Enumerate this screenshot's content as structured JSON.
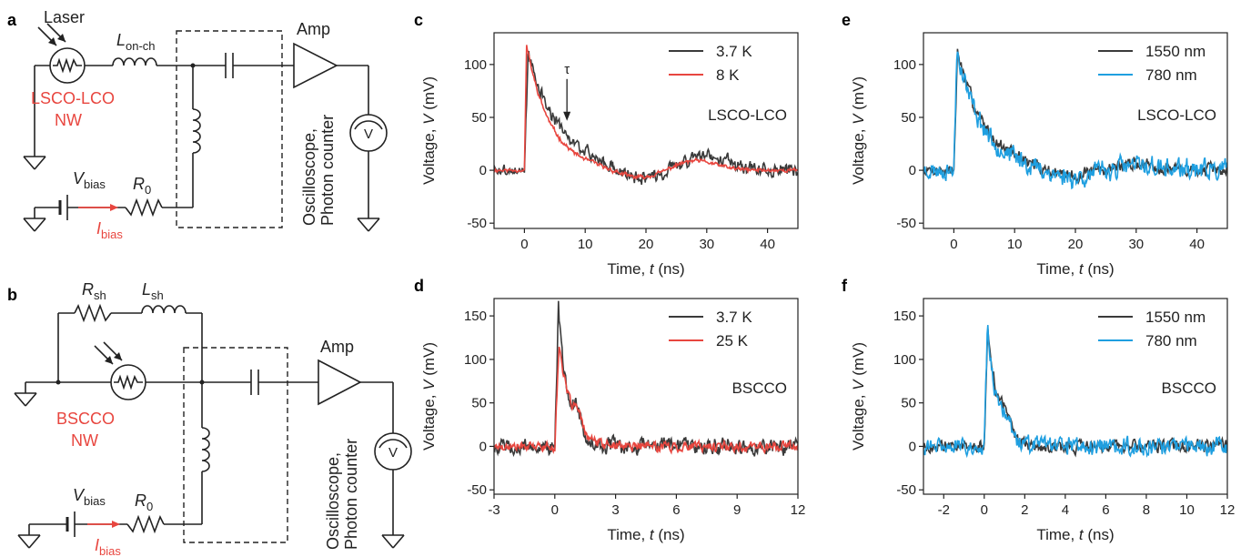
{
  "panels": {
    "a": {
      "letter": "a",
      "laser": "Laser",
      "inductor_main": "L",
      "inductor_sub": "on-ch",
      "device_line1": "LSCO-LCO",
      "device_line2": "NW",
      "amp": "Amp",
      "vbias_main": "V",
      "vbias_sub": "bias",
      "r0_main": "R",
      "r0_sub": "0",
      "ibias_main": "I",
      "ibias_sub": "bias",
      "readout_line1": "Oscilloscope,",
      "readout_line2": "Photon counter",
      "meter": "V"
    },
    "b": {
      "letter": "b",
      "rsh_main": "R",
      "rsh_sub": "sh",
      "lsh_main": "L",
      "lsh_sub": "sh",
      "device_line1": "BSCCO",
      "device_line2": "NW",
      "amp": "Amp",
      "vbias_main": "V",
      "vbias_sub": "bias",
      "r0_main": "R",
      "r0_sub": "0",
      "ibias_main": "I",
      "ibias_sub": "bias",
      "readout_line1": "Oscilloscope,",
      "readout_line2": "Photon counter",
      "meter": "V"
    }
  },
  "colors": {
    "dark": "#3a3a3a",
    "red": "#e8463f",
    "blue": "#1f9fe0",
    "ink": "#222222"
  },
  "chart_data": [
    {
      "id": "c",
      "letter": "c",
      "type": "line",
      "xlabel_main": "Time, ",
      "xlabel_var": "t",
      "xlabel_unit": " (ns)",
      "ylabel_main": "Voltage, ",
      "ylabel_var": "V",
      "ylabel_unit": " (mV)",
      "xlim": [
        -5,
        45
      ],
      "ylim": [
        -55,
        130
      ],
      "xticks": [
        0,
        10,
        20,
        30,
        40
      ],
      "yticks": [
        -50,
        0,
        50,
        100
      ],
      "sample": "LSCO-LCO",
      "annotation": "τ",
      "annotation_x": 7,
      "annotation_y": 45,
      "legend": "top-right",
      "series": [
        {
          "name": "3.7 K",
          "color": "#3a3a3a",
          "kind": "slow",
          "peak": 110,
          "tau": 5.2,
          "rise": 0.6,
          "noise": 9,
          "extra_noise": 3,
          "undershoot": -10,
          "bump": 15,
          "bumpx": 30,
          "seed": 3
        },
        {
          "name": "8 K",
          "color": "#e8463f",
          "kind": "slow",
          "peak": 118,
          "tau": 4.0,
          "rise": 0.35,
          "noise": 2.5,
          "extra_noise": 1.5,
          "undershoot": -8,
          "bump": 9,
          "bumpx": 28,
          "seed": 11
        }
      ]
    },
    {
      "id": "d",
      "letter": "d",
      "type": "line",
      "xlabel_main": "Time, ",
      "xlabel_var": "t",
      "xlabel_unit": " (ns)",
      "ylabel_main": "Voltage, ",
      "ylabel_var": "V",
      "ylabel_unit": " (mV)",
      "xlim": [
        -3,
        12
      ],
      "ylim": [
        -55,
        170
      ],
      "xticks": [
        -3,
        0,
        3,
        6,
        9,
        12
      ],
      "yticks": [
        -50,
        0,
        50,
        100,
        150
      ],
      "sample": "BSCCO",
      "legend": "top-right",
      "series": [
        {
          "name": "3.7 K",
          "color": "#3a3a3a",
          "kind": "fast",
          "peak": 160,
          "tau": 0.45,
          "rise": 0.18,
          "noise": 15,
          "seed": 5
        },
        {
          "name": "25 K",
          "color": "#e8463f",
          "kind": "fast",
          "peak": 122,
          "tau": 0.55,
          "rise": 0.22,
          "noise": 9,
          "seed": 17
        }
      ]
    },
    {
      "id": "e",
      "letter": "e",
      "type": "line",
      "xlabel_main": "Time, ",
      "xlabel_var": "t",
      "xlabel_unit": " (ns)",
      "ylabel_main": "Voltage, ",
      "ylabel_var": "V",
      "ylabel_unit": " (mV)",
      "xlim": [
        -5,
        45
      ],
      "ylim": [
        -55,
        130
      ],
      "xticks": [
        0,
        10,
        20,
        30,
        40
      ],
      "yticks": [
        -50,
        0,
        50,
        100
      ],
      "sample": "LSCO-LCO",
      "legend": "top-right",
      "series": [
        {
          "name": "1550 nm",
          "color": "#3a3a3a",
          "kind": "slow",
          "peak": 112,
          "tau": 4.6,
          "rise": 0.6,
          "noise": 9,
          "extra_noise": 3,
          "undershoot": -7,
          "bump": 6,
          "bumpx": 30,
          "seed": 7
        },
        {
          "name": "780 nm",
          "color": "#1f9fe0",
          "kind": "slow",
          "peak": 116,
          "tau": 4.2,
          "rise": 0.5,
          "noise": 14,
          "extra_noise": 4,
          "undershoot": -8,
          "bump": 4,
          "bumpx": 30,
          "seed": 23
        }
      ]
    },
    {
      "id": "f",
      "letter": "f",
      "type": "line",
      "xlabel_main": "Time, ",
      "xlabel_var": "t",
      "xlabel_unit": " (ns)",
      "ylabel_main": "Voltage, ",
      "ylabel_var": "V",
      "ylabel_unit": " (mV)",
      "xlim": [
        -3,
        12
      ],
      "ylim": [
        -55,
        170
      ],
      "xticks": [
        -2,
        0,
        2,
        4,
        6,
        8,
        10,
        12
      ],
      "yticks": [
        -50,
        0,
        50,
        100,
        150
      ],
      "sample": "BSCCO",
      "legend": "top-right",
      "series": [
        {
          "name": "1550 nm",
          "color": "#3a3a3a",
          "kind": "fast",
          "peak": 142,
          "tau": 0.5,
          "rise": 0.18,
          "noise": 12,
          "seed": 9
        },
        {
          "name": "780 nm",
          "color": "#1f9fe0",
          "kind": "fast",
          "peak": 138,
          "tau": 0.45,
          "rise": 0.16,
          "noise": 16,
          "seed": 31
        }
      ]
    }
  ]
}
